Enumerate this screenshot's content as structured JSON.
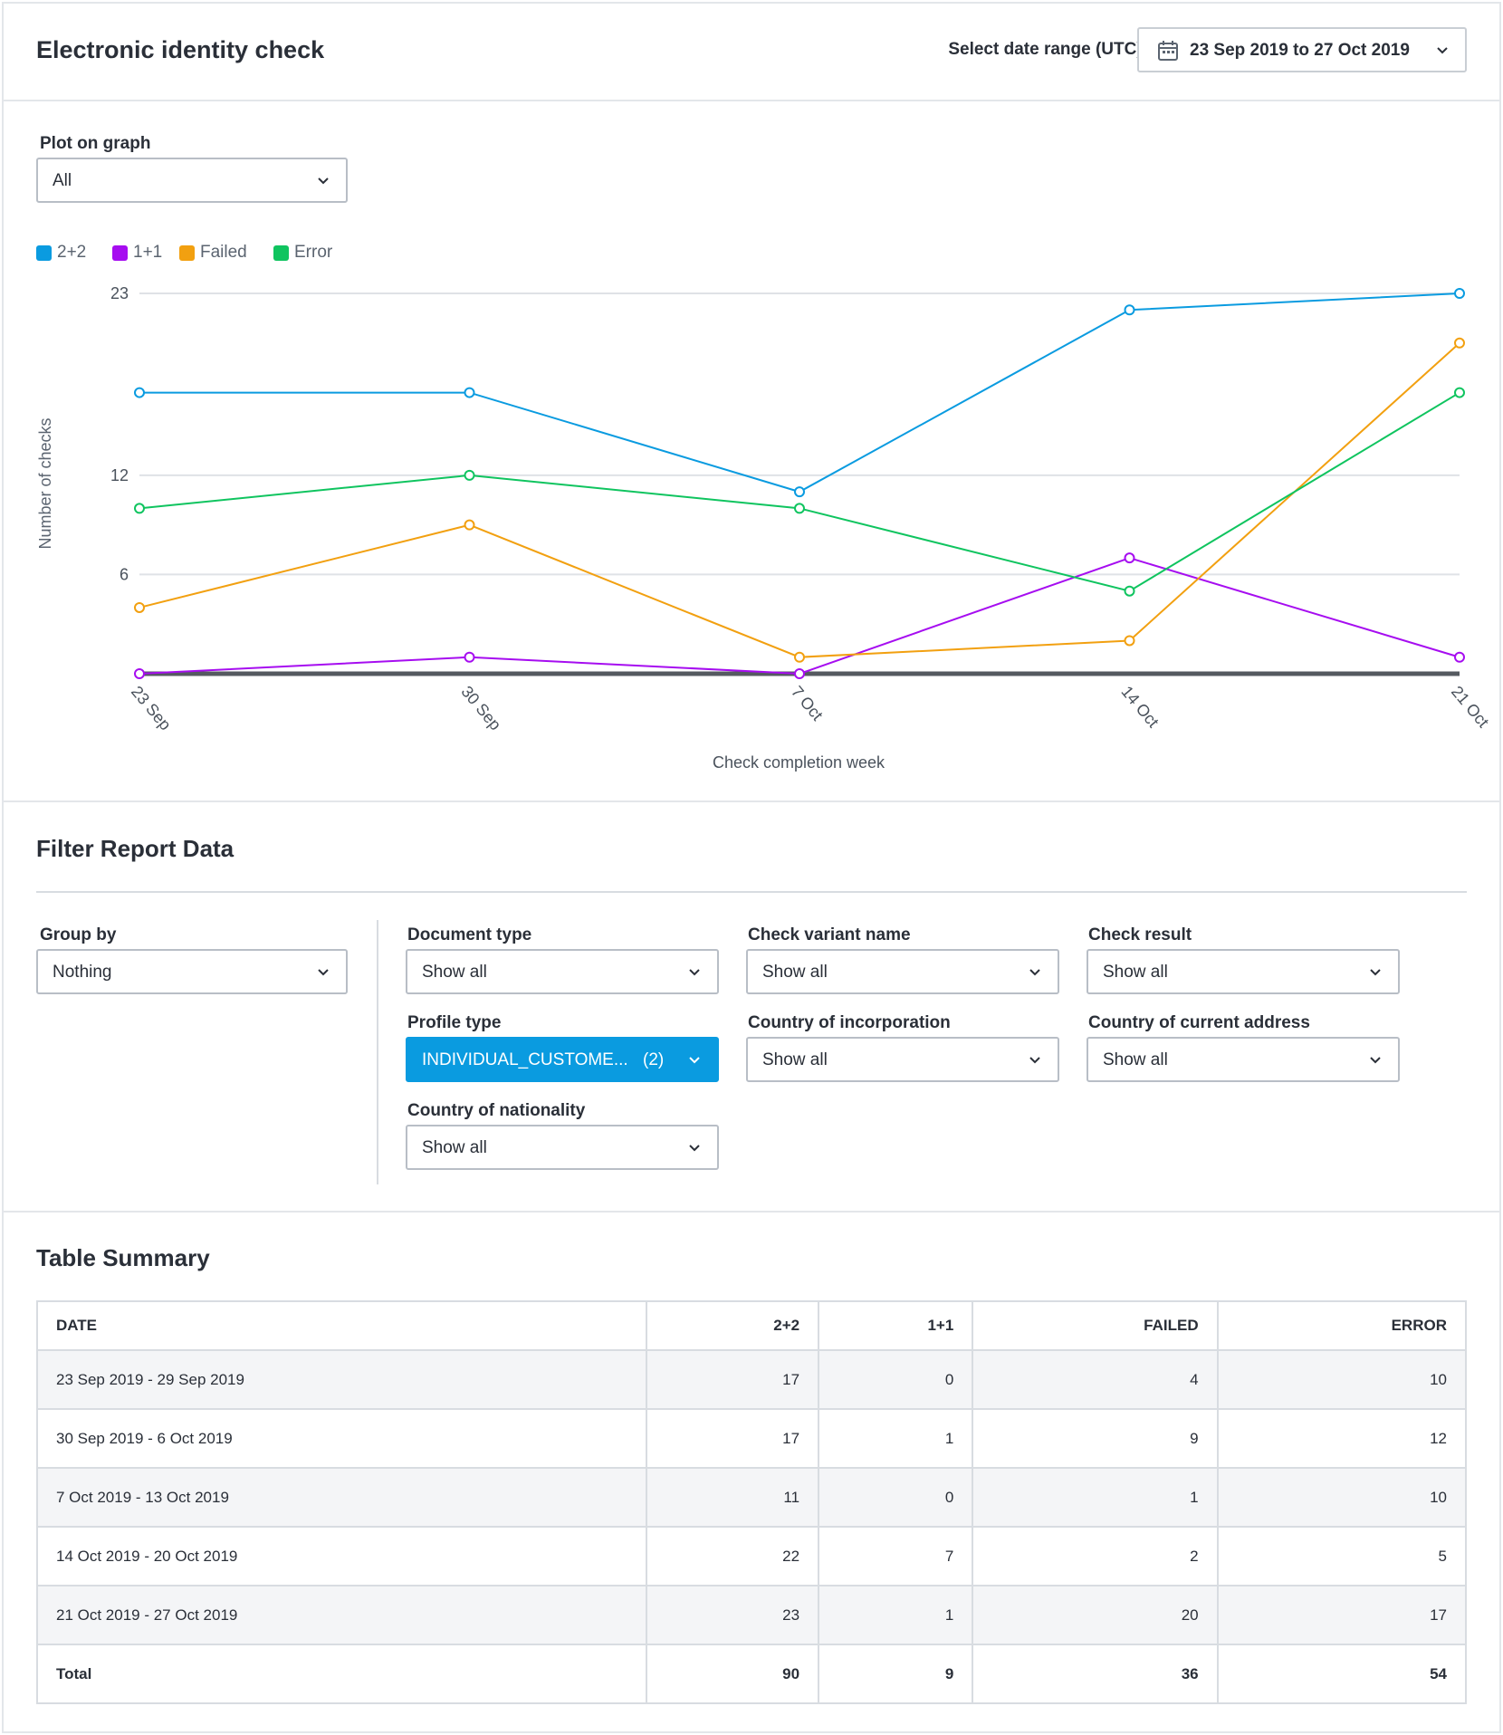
{
  "header": {
    "title": "Electronic identity check",
    "range_label": "Select date range (UTC):",
    "range_value": "23 Sep 2019 to 27 Oct 2019"
  },
  "plot": {
    "label": "Plot on graph",
    "value": "All"
  },
  "legend": [
    {
      "label": "2+2",
      "color": "#0a9be0"
    },
    {
      "label": "1+1",
      "color": "#a60df0"
    },
    {
      "label": "Failed",
      "color": "#f2a010"
    },
    {
      "label": "Error",
      "color": "#0fc45f"
    }
  ],
  "chart_data": {
    "type": "line",
    "categories": [
      "23 Sep",
      "30 Sep",
      "7 Oct",
      "14 Oct",
      "21 Oct"
    ],
    "series": [
      {
        "name": "2+2",
        "color": "#0a9be0",
        "values": [
          17,
          17,
          11,
          22,
          23
        ]
      },
      {
        "name": "1+1",
        "color": "#a60df0",
        "values": [
          0,
          1,
          0,
          7,
          1
        ]
      },
      {
        "name": "Failed",
        "color": "#f2a010",
        "values": [
          4,
          9,
          1,
          2,
          20
        ]
      },
      {
        "name": "Error",
        "color": "#0fc45f",
        "values": [
          10,
          12,
          10,
          5,
          17
        ]
      }
    ],
    "yticks": [
      6,
      12,
      23
    ],
    "ylim": [
      0,
      23
    ],
    "xlabel": "Check completion week",
    "ylabel": "Number of checks",
    "grid": true,
    "legend": "top-left"
  },
  "filters": {
    "title": "Filter Report Data",
    "group_by": {
      "label": "Group by",
      "value": "Nothing"
    },
    "document_type": {
      "label": "Document type",
      "value": "Show all"
    },
    "check_variant": {
      "label": "Check variant name",
      "value": "Show all"
    },
    "check_result": {
      "label": "Check result",
      "value": "Show all"
    },
    "profile_type": {
      "label": "Profile type",
      "value": "INDIVIDUAL_CUSTOME...",
      "count": "(2)"
    },
    "country_incorporation": {
      "label": "Country of incorporation",
      "value": "Show all"
    },
    "country_address": {
      "label": "Country of current address",
      "value": "Show all"
    },
    "country_nationality": {
      "label": "Country of nationality",
      "value": "Show all"
    }
  },
  "table": {
    "title": "Table Summary",
    "headers": [
      "DATE",
      "2+2",
      "1+1",
      "FAILED",
      "ERROR"
    ],
    "rows": [
      [
        "23 Sep 2019 - 29 Sep 2019",
        "17",
        "0",
        "4",
        "10"
      ],
      [
        "30 Sep 2019 - 6 Oct 2019",
        "17",
        "1",
        "9",
        "12"
      ],
      [
        "7 Oct 2019 - 13 Oct 2019",
        "11",
        "0",
        "1",
        "10"
      ],
      [
        "14 Oct 2019 - 20 Oct 2019",
        "22",
        "7",
        "2",
        "5"
      ],
      [
        "21 Oct 2019 - 27 Oct 2019",
        "23",
        "1",
        "20",
        "17"
      ]
    ],
    "total": [
      "Total",
      "90",
      "9",
      "36",
      "54"
    ]
  }
}
